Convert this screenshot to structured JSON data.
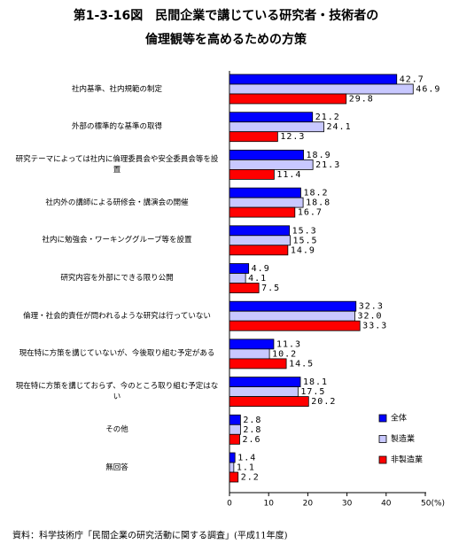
{
  "chart_data": {
    "type": "hbar",
    "title": [
      "第1-3-16図　民間企業で講じている研究者・技術者の",
      "倫理観等を高めるための方策"
    ],
    "categories": [
      "社内基準、社内規範の制定",
      "外部の標準的な基準の取得",
      "研究テーマによっては社内に倫理委員会や安全委員会等を設置",
      "社内外の講師による研修会・講演会の開催",
      "社内に勉強会・ワーキンググループ等を設置",
      "研究内容を外部にできる限り公開",
      "倫理・社会的責任が問われるような研究は行っていない",
      "現在特に方策を講じていないが、今後取り組む予定がある",
      "現在特に方策を講じておらず、今のところ取り組む予定はない",
      "その他",
      "無回答"
    ],
    "series": [
      {
        "name": "全体",
        "color": "#0000ff",
        "values": [
          42.7,
          21.2,
          18.9,
          18.2,
          15.3,
          4.9,
          32.3,
          11.3,
          18.1,
          2.8,
          1.4
        ],
        "value_labels": [
          "42.7",
          "21.2",
          "18.9",
          "18.2",
          "15.3",
          "4.9",
          "32.3",
          "11.3",
          "18.1",
          "2.8",
          "1.4"
        ]
      },
      {
        "name": "製造業",
        "color": "#c8c8ff",
        "values": [
          46.9,
          24.1,
          21.3,
          18.8,
          15.5,
          4.1,
          32.0,
          10.2,
          17.5,
          2.8,
          1.1
        ],
        "value_labels": [
          "46.9",
          "24.1",
          "21.3",
          "18.8",
          "15.5",
          "4.1",
          "32.0",
          "10.2",
          "17.5",
          "2.8",
          "1.1"
        ]
      },
      {
        "name": "非製造業",
        "color": "#ff0000",
        "values": [
          29.8,
          12.3,
          11.4,
          16.7,
          14.9,
          7.5,
          33.3,
          14.5,
          20.2,
          2.6,
          2.2
        ],
        "value_labels": [
          "29.8",
          "12.3",
          "11.4",
          "16.7",
          "14.9",
          "7.5",
          "33.3",
          "14.5",
          "20.2",
          "2.6",
          "2.2"
        ]
      }
    ],
    "xlim": [
      0,
      50
    ],
    "xticks": [
      0,
      10,
      20,
      30,
      40,
      {
        "value": 50,
        "label": "50(%)"
      }
    ],
    "source": "資料：科学技術庁「民間企業の研究活動に関する調査」(平成11年度)"
  }
}
